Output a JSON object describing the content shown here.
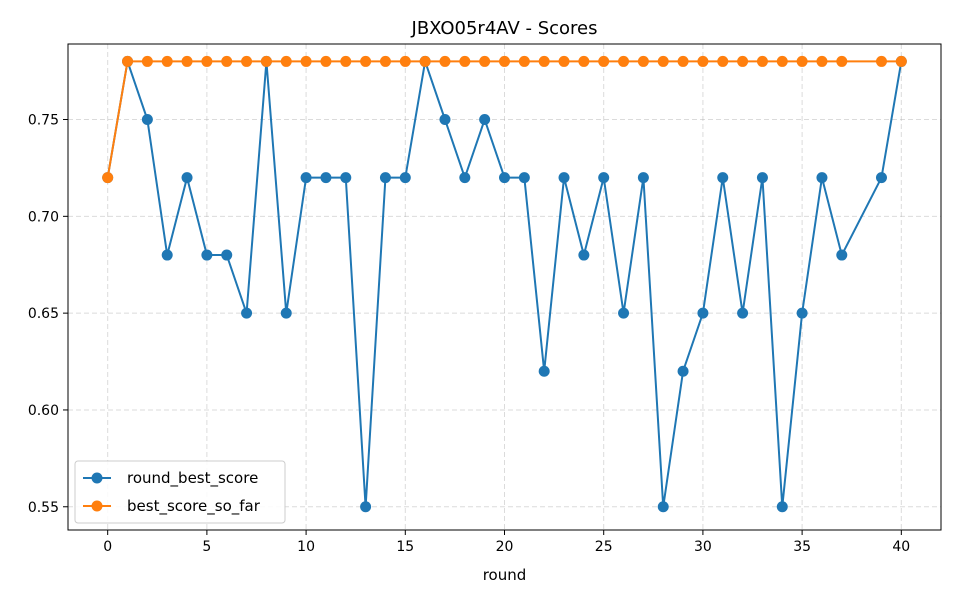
{
  "chart_data": {
    "type": "line",
    "title": "JBXO05r4AV - Scores",
    "xlabel": "round",
    "ylabel": "",
    "xlim": [
      -2,
      42
    ],
    "ylim": [
      0.538,
      0.789
    ],
    "x_ticks": [
      0,
      5,
      10,
      15,
      20,
      25,
      30,
      35,
      40
    ],
    "y_ticks": [
      0.55,
      0.6,
      0.65,
      0.7,
      0.75
    ],
    "y_tick_labels": [
      "0.55",
      "0.60",
      "0.65",
      "0.70",
      "0.75"
    ],
    "grid": true,
    "legend_position": "lower-left",
    "series": [
      {
        "name": "round_best_score",
        "color": "#1f77b4",
        "points": [
          [
            0,
            0.72
          ],
          [
            1,
            0.78
          ],
          [
            2,
            0.75
          ],
          [
            3,
            0.68
          ],
          [
            4,
            0.72
          ],
          [
            5,
            0.68
          ],
          [
            6,
            0.68
          ],
          [
            7,
            0.65
          ],
          [
            8,
            0.78
          ],
          [
            9,
            0.65
          ],
          [
            10,
            0.72
          ],
          [
            11,
            0.72
          ],
          [
            12,
            0.72
          ],
          [
            13,
            0.55
          ],
          [
            14,
            0.72
          ],
          [
            15,
            0.72
          ],
          [
            16,
            0.78
          ],
          [
            17,
            0.75
          ],
          [
            18,
            0.72
          ],
          [
            19,
            0.75
          ],
          [
            20,
            0.72
          ],
          [
            21,
            0.72
          ],
          [
            22,
            0.62
          ],
          [
            23,
            0.72
          ],
          [
            24,
            0.68
          ],
          [
            25,
            0.72
          ],
          [
            26,
            0.65
          ],
          [
            27,
            0.72
          ],
          [
            28,
            0.55
          ],
          [
            29,
            0.62
          ],
          [
            30,
            0.65
          ],
          [
            31,
            0.72
          ],
          [
            32,
            0.65
          ],
          [
            33,
            0.72
          ],
          [
            34,
            0.55
          ],
          [
            35,
            0.65
          ],
          [
            36,
            0.72
          ],
          [
            37,
            0.68
          ],
          [
            39,
            0.72
          ],
          [
            40,
            0.78
          ]
        ]
      },
      {
        "name": "best_score_so_far",
        "color": "#ff7f0e",
        "points": [
          [
            0,
            0.72
          ],
          [
            1,
            0.78
          ],
          [
            2,
            0.78
          ],
          [
            3,
            0.78
          ],
          [
            4,
            0.78
          ],
          [
            5,
            0.78
          ],
          [
            6,
            0.78
          ],
          [
            7,
            0.78
          ],
          [
            8,
            0.78
          ],
          [
            9,
            0.78
          ],
          [
            10,
            0.78
          ],
          [
            11,
            0.78
          ],
          [
            12,
            0.78
          ],
          [
            13,
            0.78
          ],
          [
            14,
            0.78
          ],
          [
            15,
            0.78
          ],
          [
            16,
            0.78
          ],
          [
            17,
            0.78
          ],
          [
            18,
            0.78
          ],
          [
            19,
            0.78
          ],
          [
            20,
            0.78
          ],
          [
            21,
            0.78
          ],
          [
            22,
            0.78
          ],
          [
            23,
            0.78
          ],
          [
            24,
            0.78
          ],
          [
            25,
            0.78
          ],
          [
            26,
            0.78
          ],
          [
            27,
            0.78
          ],
          [
            28,
            0.78
          ],
          [
            29,
            0.78
          ],
          [
            30,
            0.78
          ],
          [
            31,
            0.78
          ],
          [
            32,
            0.78
          ],
          [
            33,
            0.78
          ],
          [
            34,
            0.78
          ],
          [
            35,
            0.78
          ],
          [
            36,
            0.78
          ],
          [
            37,
            0.78
          ],
          [
            39,
            0.78
          ],
          [
            40,
            0.78
          ]
        ]
      }
    ]
  }
}
